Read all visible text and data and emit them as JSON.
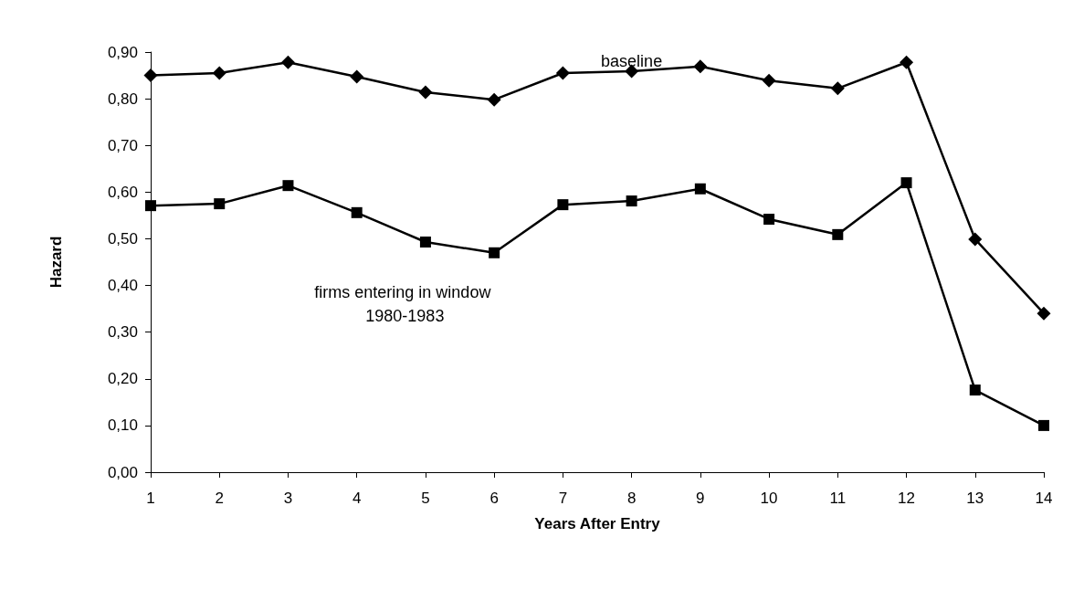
{
  "chart_data": {
    "type": "line",
    "xlabel": "Years After Entry",
    "ylabel": "Hazard",
    "x": [
      1,
      2,
      3,
      4,
      5,
      6,
      7,
      8,
      9,
      10,
      11,
      12,
      13,
      14
    ],
    "xlim": [
      1,
      14
    ],
    "xticks": [
      1,
      2,
      3,
      4,
      5,
      6,
      7,
      8,
      9,
      10,
      11,
      12,
      13,
      14
    ],
    "ylim": [
      0,
      0.9
    ],
    "yticks": [
      {
        "value": 0,
        "label": "0,00"
      },
      {
        "value": 0.1,
        "label": "0,10"
      },
      {
        "value": 0.2,
        "label": "0,20"
      },
      {
        "value": 0.3,
        "label": "0,30"
      },
      {
        "value": 0.4,
        "label": "0,40"
      },
      {
        "value": 0.5,
        "label": "0,50"
      },
      {
        "value": 0.6,
        "label": "0,60"
      },
      {
        "value": 0.7,
        "label": "0,70"
      },
      {
        "value": 0.8,
        "label": "0,80"
      },
      {
        "value": 0.9,
        "label": "0,90"
      }
    ],
    "grid": false,
    "legend": false,
    "line_style": "solid",
    "series": [
      {
        "name": "baseline",
        "color": "#000000",
        "marker": "diamond",
        "values": [
          0.85,
          0.855,
          0.878,
          0.847,
          0.814,
          0.798,
          0.855,
          0.859,
          0.869,
          0.839,
          0.822,
          0.878,
          0.499,
          0.34
        ]
      },
      {
        "name": "firms entering in window 1980-1983",
        "color": "#000000",
        "marker": "square",
        "values": [
          0.571,
          0.575,
          0.614,
          0.556,
          0.493,
          0.47,
          0.573,
          0.581,
          0.607,
          0.542,
          0.509,
          0.62,
          0.176,
          0.1
        ]
      }
    ]
  }
}
